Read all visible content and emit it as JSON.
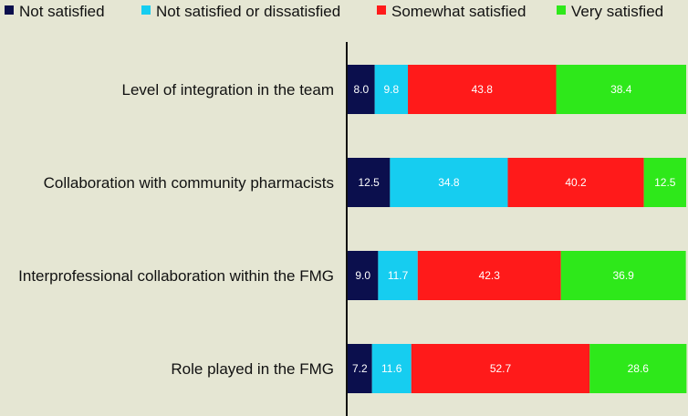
{
  "chart_data": {
    "type": "bar",
    "orientation": "horizontal",
    "stacked": true,
    "percent_stacked": true,
    "title": "",
    "xlabel": "",
    "ylabel": "",
    "xlim": [
      0,
      100
    ],
    "grid": false,
    "legend_position": "top",
    "categories": [
      "Level of integration in the team",
      "Collaboration with community pharmacists",
      "Interprofessional collaboration within the FMG",
      "Role played in the FMG"
    ],
    "series": [
      {
        "name": "Not satisfied",
        "color": "#0b0f4d",
        "values": [
          8.0,
          12.5,
          9.0,
          7.2
        ],
        "labels": [
          "8.0",
          "12.5",
          "9.0",
          "7.2"
        ]
      },
      {
        "name": "Not satisfied or dissatisfied",
        "color": "#16cdf0",
        "values": [
          9.8,
          34.8,
          11.7,
          11.6
        ],
        "labels": [
          "9.8",
          "34.8",
          "11.7",
          "11.6"
        ]
      },
      {
        "name": "Somewhat satisfied",
        "color": "#ff1a1a",
        "values": [
          43.8,
          40.2,
          42.3,
          52.7
        ],
        "labels": [
          "43.8",
          "40.2",
          "42.3",
          "52.7"
        ]
      },
      {
        "name": "Very satisfied",
        "color": "#2ee81a",
        "values": [
          38.4,
          12.5,
          36.9,
          28.6
        ],
        "labels": [
          "38.4",
          "12.5",
          "36.9",
          "28.6"
        ]
      }
    ]
  }
}
